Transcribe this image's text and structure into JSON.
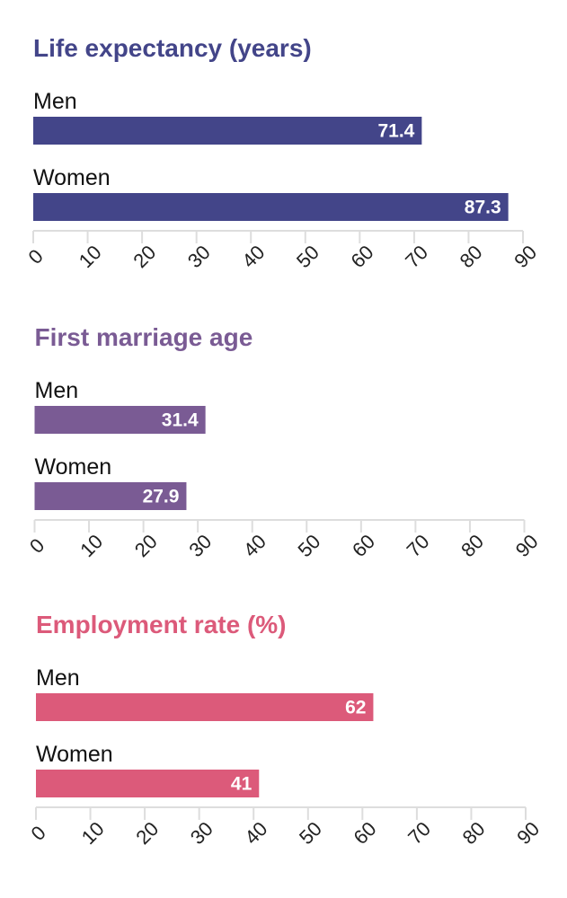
{
  "chart_data": [
    {
      "type": "bar",
      "orientation": "horizontal",
      "title": "Life expectancy (years)",
      "color": "#434589",
      "categories": [
        "Men",
        "Women"
      ],
      "values": [
        71.4,
        87.3
      ],
      "value_labels": [
        "71.4",
        "87.3"
      ],
      "xlim": [
        0,
        90
      ],
      "ticks": [
        0,
        10,
        20,
        30,
        40,
        50,
        60,
        70,
        80,
        90
      ],
      "tick_labels": [
        "0",
        "10",
        "20",
        "30",
        "40",
        "50",
        "60",
        "70",
        "80",
        "90"
      ]
    },
    {
      "type": "bar",
      "orientation": "horizontal",
      "title": "First marriage age",
      "color": "#7a5b94",
      "categories": [
        "Men",
        "Women"
      ],
      "values": [
        31.4,
        27.9
      ],
      "value_labels": [
        "31.4",
        "27.9"
      ],
      "xlim": [
        0,
        90
      ],
      "ticks": [
        0,
        10,
        20,
        30,
        40,
        50,
        60,
        70,
        80,
        90
      ],
      "tick_labels": [
        "0",
        "10",
        "20",
        "30",
        "40",
        "50",
        "60",
        "70",
        "80",
        "90"
      ]
    },
    {
      "type": "bar",
      "orientation": "horizontal",
      "title": "Employment rate (%)",
      "color": "#dc5a7a",
      "categories": [
        "Men",
        "Women"
      ],
      "values": [
        62,
        41
      ],
      "value_labels": [
        "62",
        "41"
      ],
      "xlim": [
        0,
        90
      ],
      "ticks": [
        0,
        10,
        20,
        30,
        40,
        50,
        60,
        70,
        80,
        90
      ],
      "tick_labels": [
        "0",
        "10",
        "20",
        "30",
        "40",
        "50",
        "60",
        "70",
        "80",
        "90"
      ]
    }
  ]
}
